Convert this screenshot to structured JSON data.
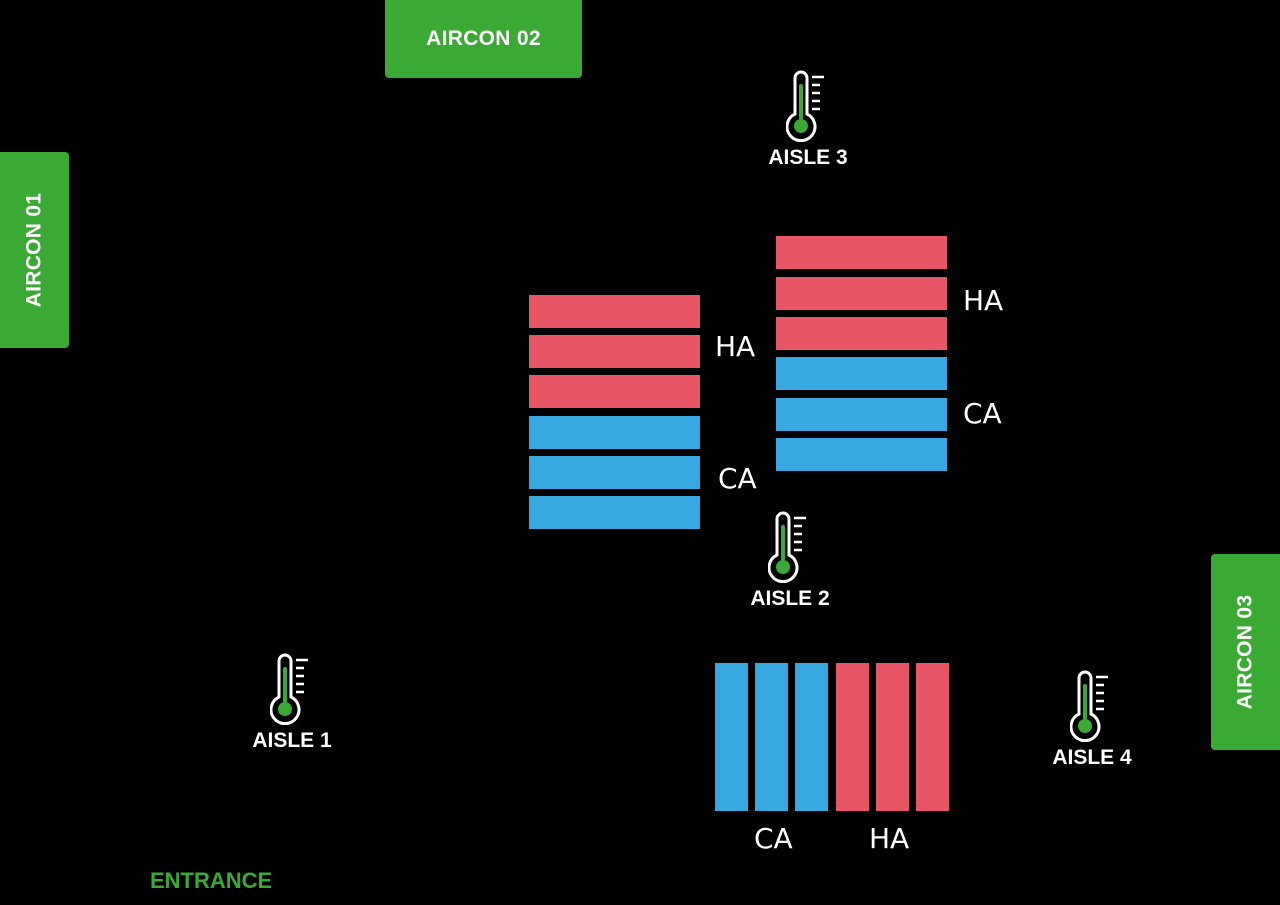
{
  "colors": {
    "background": "#000000",
    "aircon": "#3aaa35",
    "hot_aisle": "#e85565",
    "cold_aisle": "#38a9e0",
    "text": "#ffffff"
  },
  "aircon_units": [
    {
      "label": "AIRCON 02"
    },
    {
      "label": "AIRCON 01"
    },
    {
      "label": "AIRCON 03"
    }
  ],
  "rack_groups": [
    {
      "strips": [
        "HA",
        "HA",
        "HA",
        "CA",
        "CA",
        "CA"
      ],
      "labels": [
        "HA",
        "CA"
      ]
    },
    {
      "strips": [
        "HA",
        "HA",
        "HA",
        "CA",
        "CA",
        "CA"
      ],
      "labels": [
        "HA",
        "CA"
      ]
    },
    {
      "strips": [
        "CA",
        "CA",
        "CA",
        "HA",
        "HA",
        "HA"
      ],
      "labels": [
        "CA",
        "HA"
      ]
    }
  ],
  "sensors": [
    {
      "label": "AISLE 3",
      "icon": "thermometer-icon"
    },
    {
      "label": "AISLE 2",
      "icon": "thermometer-icon"
    },
    {
      "label": "AISLE 1",
      "icon": "thermometer-icon"
    },
    {
      "label": "AISLE 4",
      "icon": "thermometer-icon"
    }
  ],
  "entrance": {
    "label": "ENTRANCE"
  }
}
